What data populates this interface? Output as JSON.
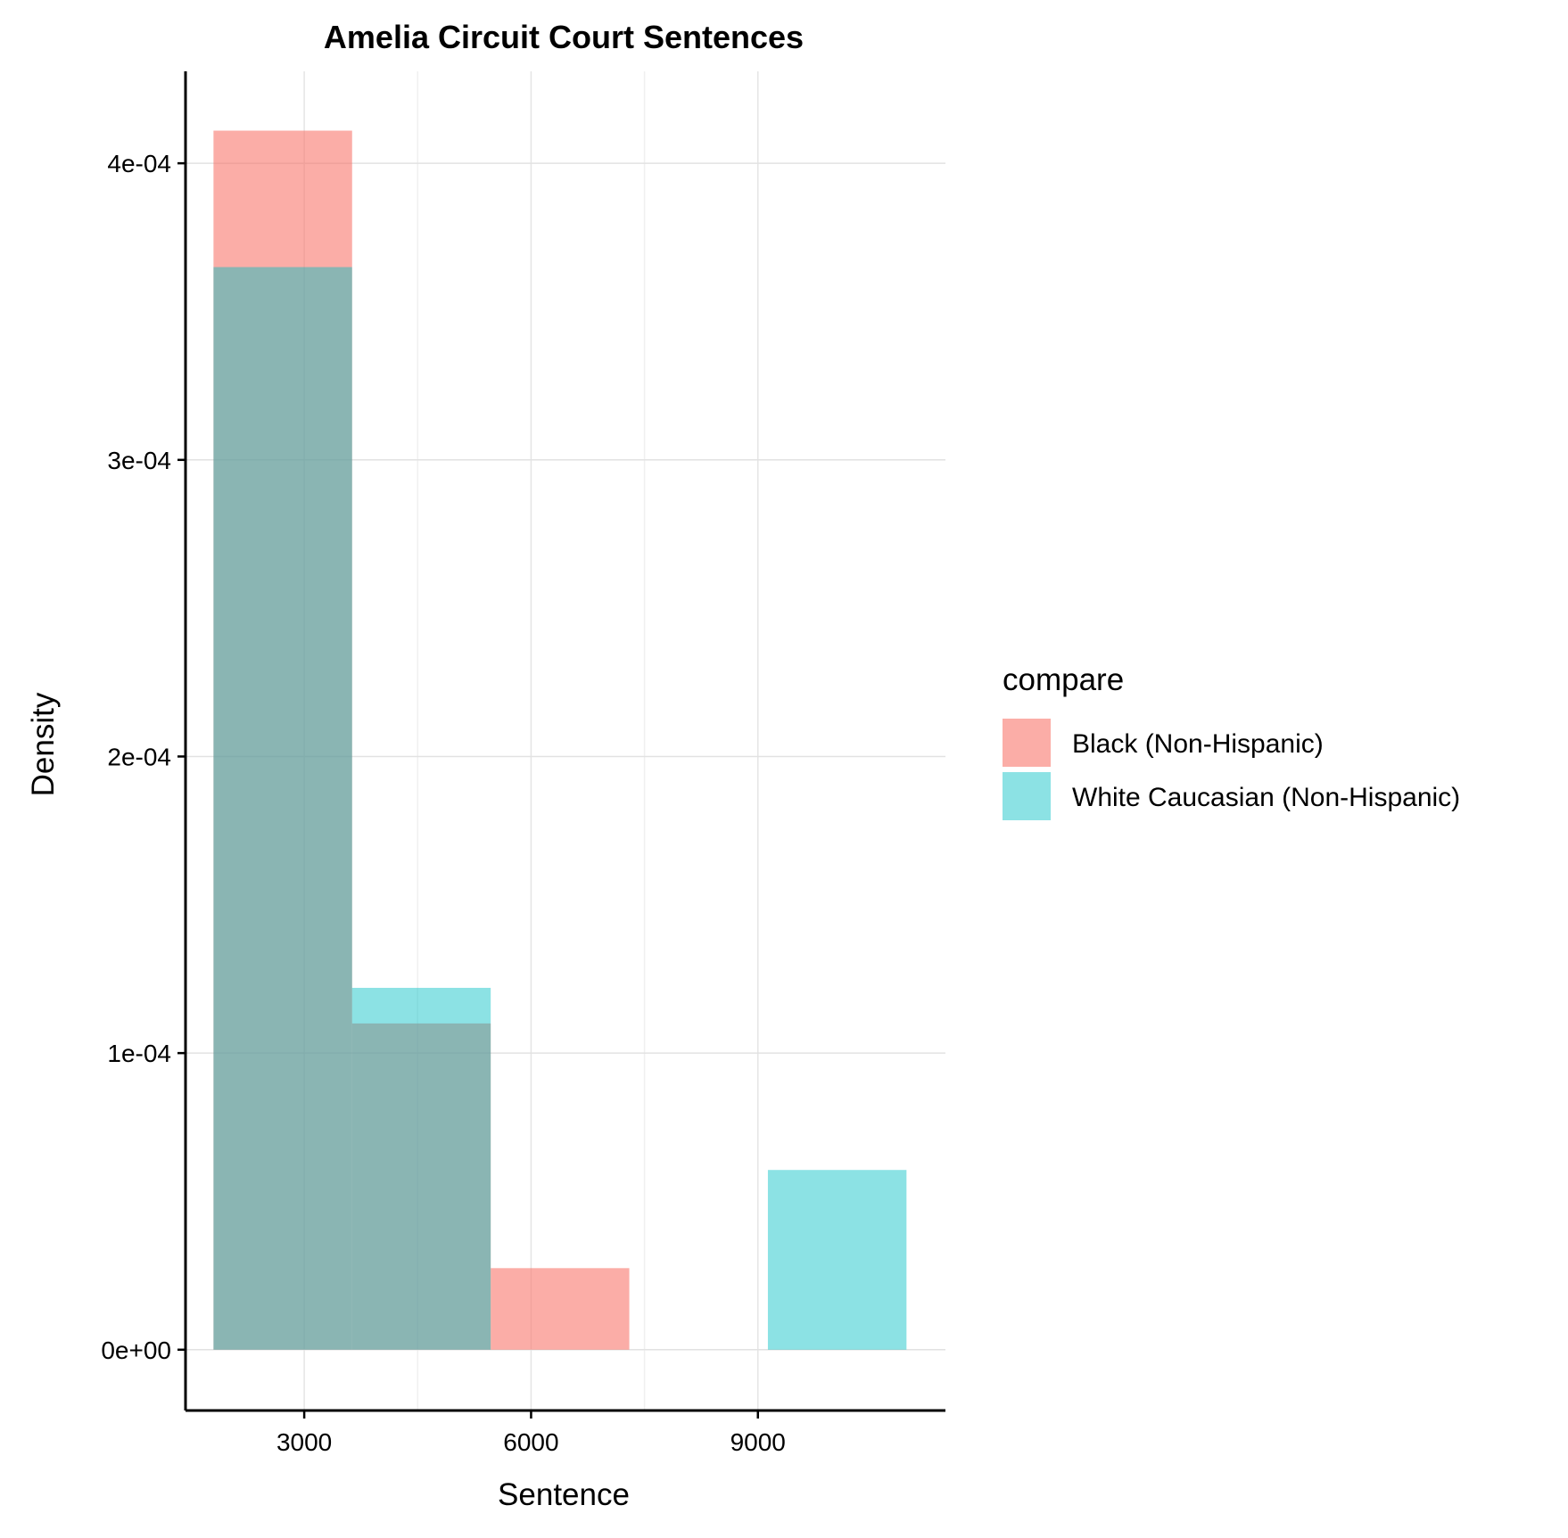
{
  "chart_data": {
    "type": "histogram",
    "title": "Amelia Circuit Court Sentences",
    "xlabel": "Sentence",
    "ylabel": "Density",
    "x_ticks": [
      3000,
      6000,
      9000
    ],
    "y_ticks": [
      0,
      0.0001,
      0.0002,
      0.0003,
      0.0004
    ],
    "y_tick_labels": [
      "0e+00",
      "1e-04",
      "2e-04",
      "3e-04",
      "4e-04"
    ],
    "xlim": [
      1430,
      11480
    ],
    "ylim": [
      -2.05e-05,
      0.000431
    ],
    "grid": true,
    "bin_edges": [
      1800,
      3633,
      5466,
      7299,
      9132,
      10965
    ],
    "series": [
      {
        "name": "Black (Non-Hispanic)",
        "color": "#F8766D",
        "opacity": 0.6,
        "values": [
          0.000411,
          0.00011,
          2.75e-05,
          0,
          0
        ]
      },
      {
        "name": "White Caucasian (Non-Hispanic)",
        "color": "#00BFC4",
        "opacity": 0.45,
        "values": [
          0.000365,
          0.000122,
          0,
          0,
          6.06e-05
        ]
      }
    ],
    "legend": {
      "title": "compare",
      "position": "right"
    }
  }
}
